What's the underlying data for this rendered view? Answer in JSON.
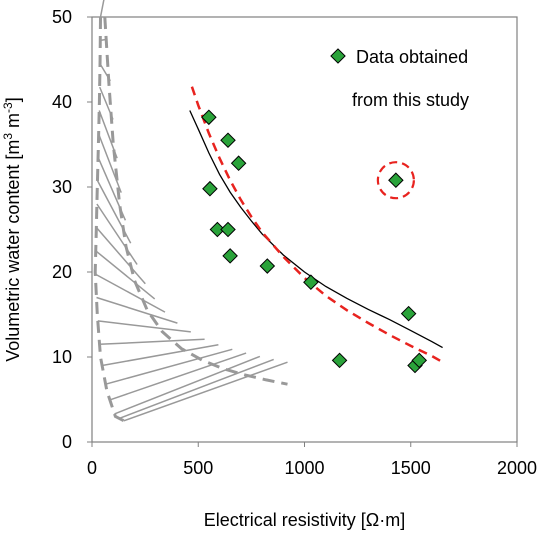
{
  "chart_data": {
    "type": "scatter",
    "xlabel": "Electrical resistivity [Ω·m]",
    "ylabel_main": "Volumetric water content [m",
    "ylabel_sup1": "3",
    "ylabel_mid": " m",
    "ylabel_sup2": "-3",
    "ylabel_end": "]",
    "xlim": [
      0,
      2000
    ],
    "ylim": [
      0,
      50
    ],
    "xticks": [
      0,
      500,
      1000,
      1500,
      2000
    ],
    "yticks": [
      0,
      10,
      20,
      30,
      40,
      50
    ],
    "grid": false,
    "legend": {
      "position": "top-right",
      "line1": "Data obtained",
      "line2": "from this study"
    },
    "series": [
      {
        "name": "Data obtained from this study",
        "marker": "diamond",
        "color": "#2aa33a",
        "points": [
          [
            550,
            38.2
          ],
          [
            640,
            35.5
          ],
          [
            690,
            32.8
          ],
          [
            555,
            29.8
          ],
          [
            590,
            25.0
          ],
          [
            640,
            25.0
          ],
          [
            650,
            21.9
          ],
          [
            825,
            20.7
          ],
          [
            1030,
            18.8
          ],
          [
            1165,
            9.6
          ],
          [
            1430,
            30.8
          ],
          [
            1490,
            15.1
          ],
          [
            1520,
            9.0
          ],
          [
            1540,
            9.6
          ]
        ]
      }
    ],
    "fits": [
      {
        "style": "solid",
        "color": "#000000",
        "points": [
          [
            460,
            39.0
          ],
          [
            500,
            36.8
          ],
          [
            550,
            34.0
          ],
          [
            600,
            31.5
          ],
          [
            650,
            29.4
          ],
          [
            700,
            27.6
          ],
          [
            750,
            26.0
          ],
          [
            800,
            24.5
          ],
          [
            900,
            22.0
          ],
          [
            1000,
            20.0
          ],
          [
            1100,
            18.3
          ],
          [
            1200,
            16.9
          ],
          [
            1300,
            15.6
          ],
          [
            1400,
            14.4
          ],
          [
            1500,
            13.1
          ],
          [
            1600,
            11.8
          ],
          [
            1650,
            11.1
          ]
        ]
      },
      {
        "style": "dashed",
        "color": "#e8231f",
        "points": [
          [
            470,
            41.8
          ],
          [
            500,
            39.6
          ],
          [
            550,
            36.3
          ],
          [
            600,
            33.4
          ],
          [
            650,
            30.8
          ],
          [
            700,
            28.5
          ],
          [
            750,
            26.5
          ],
          [
            800,
            24.7
          ],
          [
            900,
            21.8
          ],
          [
            1000,
            19.3
          ],
          [
            1100,
            17.2
          ],
          [
            1200,
            15.5
          ],
          [
            1300,
            14.0
          ],
          [
            1400,
            12.6
          ],
          [
            1500,
            11.3
          ],
          [
            1600,
            10.1
          ],
          [
            1650,
            9.4
          ]
        ]
      }
    ],
    "highlight": {
      "x": 1430,
      "y": 30.8,
      "color": "#e8231f",
      "style": "dashed-circle"
    },
    "hatched_region": {
      "color": "#999999",
      "left_boundary": [
        [
          40,
          50
        ],
        [
          38,
          45
        ],
        [
          35,
          40
        ],
        [
          30,
          35
        ],
        [
          25,
          30
        ],
        [
          20,
          25
        ],
        [
          15,
          20
        ],
        [
          25,
          15
        ],
        [
          40,
          10
        ],
        [
          70,
          6
        ],
        [
          110,
          3
        ],
        [
          150,
          2.5
        ]
      ],
      "right_boundary": [
        [
          60,
          50
        ],
        [
          80,
          42
        ],
        [
          100,
          35
        ],
        [
          130,
          28
        ],
        [
          160,
          23
        ],
        [
          200,
          19
        ],
        [
          260,
          15.5
        ],
        [
          330,
          13.0
        ],
        [
          420,
          11.0
        ],
        [
          520,
          9.6
        ],
        [
          620,
          8.6
        ],
        [
          720,
          7.9
        ],
        [
          820,
          7.3
        ],
        [
          920,
          6.8
        ]
      ],
      "bottom_right": [
        [
          150,
          2.5
        ],
        [
          920,
          6.8
        ]
      ]
    }
  }
}
